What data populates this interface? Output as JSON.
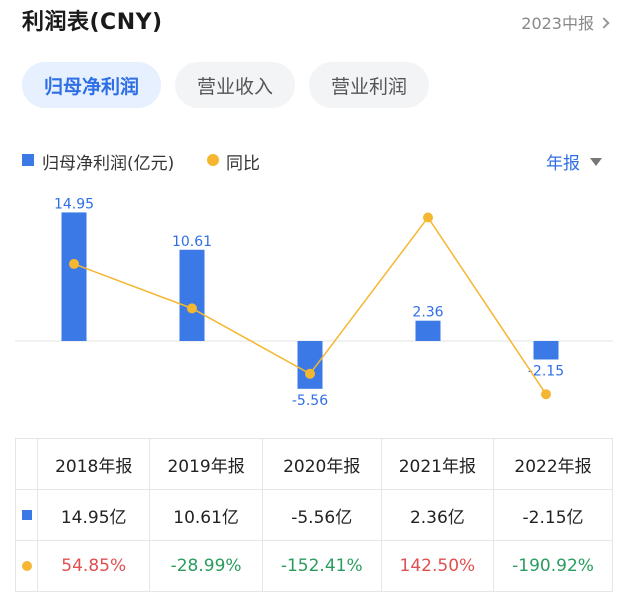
{
  "header": {
    "title": "利润表(CNY)",
    "period": "2023中报"
  },
  "tabs": [
    {
      "label": "归母净利润",
      "active": true
    },
    {
      "label": "营业收入",
      "active": false
    },
    {
      "label": "营业利润",
      "active": false
    }
  ],
  "legend": {
    "bar_label": "归母净利润(亿元)",
    "line_label": "同比",
    "period_select": "年报"
  },
  "colors": {
    "bar": "#3b7ae6",
    "line": "#f5b731",
    "positive": "#e05050",
    "negative": "#2a9d5e",
    "accent": "#2f6fe6"
  },
  "chart_data": {
    "type": "bar",
    "categories": [
      "2018年报",
      "2019年报",
      "2020年报",
      "2021年报",
      "2022年报"
    ],
    "series": [
      {
        "name": "归母净利润(亿元)",
        "type": "bar",
        "values": [
          14.95,
          10.61,
          -5.56,
          2.36,
          -2.15
        ],
        "labels": [
          "14.95",
          "10.61",
          "-5.56",
          "2.36",
          "-2.15"
        ]
      },
      {
        "name": "同比",
        "type": "line",
        "values": [
          54.85,
          -28.99,
          -152.41,
          142.5,
          -190.92
        ]
      }
    ]
  },
  "table": {
    "columns": [
      "2018年报",
      "2019年报",
      "2020年报",
      "2021年报",
      "2022年报"
    ],
    "profit_row": [
      "14.95亿",
      "10.61亿",
      "-5.56亿",
      "2.36亿",
      "-2.15亿"
    ],
    "yoy_row": [
      "54.85%",
      "-28.99%",
      "-152.41%",
      "142.50%",
      "-190.92%"
    ]
  }
}
